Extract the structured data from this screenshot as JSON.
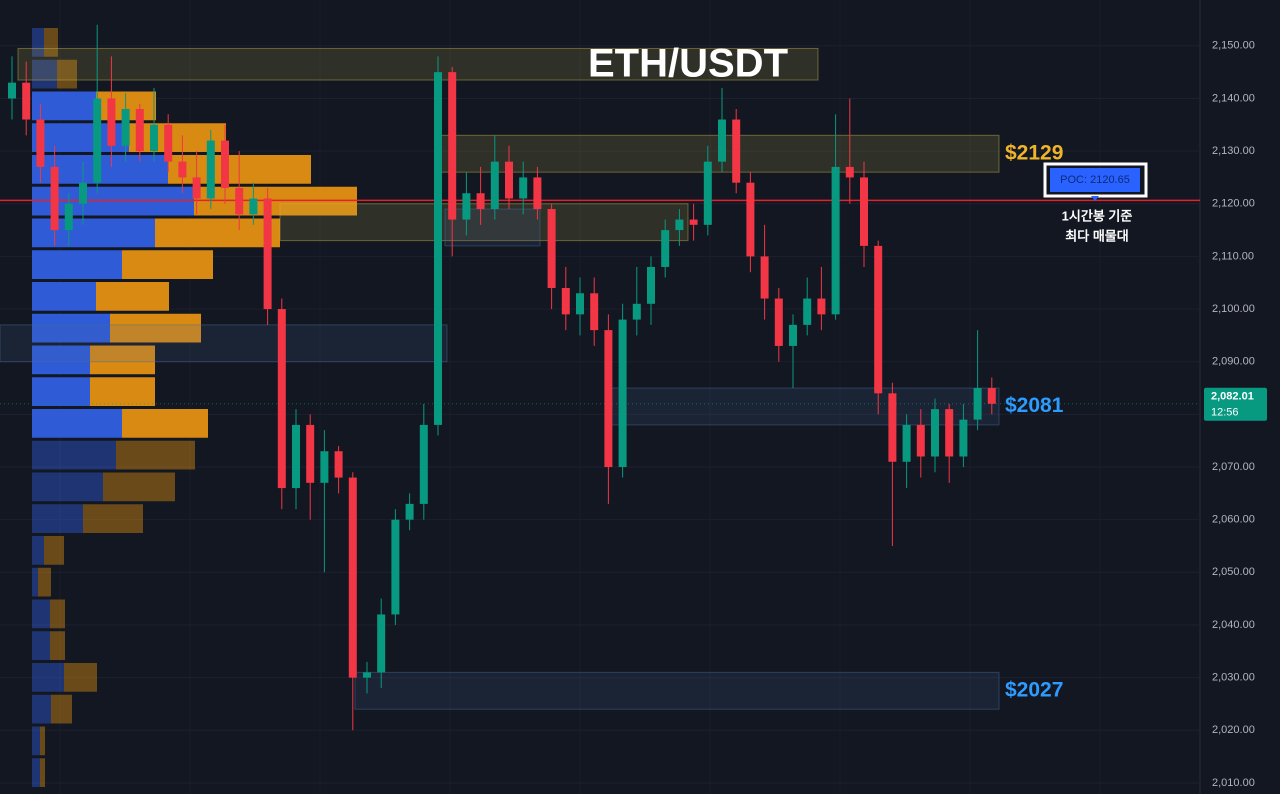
{
  "chart_data": {
    "type": "candlestick",
    "title": "ETH/USDT",
    "ylim": [
      2007.9,
      2158.7
    ],
    "yticks": [
      {
        "value": 2010,
        "label": "2,010.00"
      },
      {
        "value": 2020,
        "label": "2,020.00"
      },
      {
        "value": 2030,
        "label": "2,030.00"
      },
      {
        "value": 2040,
        "label": "2,040.00"
      },
      {
        "value": 2050,
        "label": "2,050.00"
      },
      {
        "value": 2060,
        "label": "2,060.00"
      },
      {
        "value": 2070,
        "label": "2,070.00"
      },
      {
        "value": 2080,
        "label": "2,080.00"
      },
      {
        "value": 2090,
        "label": "2,090.00"
      },
      {
        "value": 2100,
        "label": "2,100.00"
      },
      {
        "value": 2110,
        "label": "2,110.00"
      },
      {
        "value": 2120,
        "label": "2,120.00"
      },
      {
        "value": 2130,
        "label": "2,130.00"
      },
      {
        "value": 2140,
        "label": "2,140.00"
      },
      {
        "value": 2150,
        "label": "2,150.00"
      }
    ],
    "grid": true,
    "up_color": "#089981",
    "down_color": "#f23645",
    "ohlc": [
      [
        2140,
        2148,
        2136,
        2143
      ],
      [
        2143,
        2147,
        2133,
        2136
      ],
      [
        2136,
        2139,
        2124,
        2127
      ],
      [
        2127,
        2131,
        2112,
        2115
      ],
      [
        2115,
        2122,
        2112,
        2120
      ],
      [
        2120,
        2128,
        2116,
        2124
      ],
      [
        2124,
        2154,
        2122,
        2140
      ],
      [
        2140,
        2148,
        2127,
        2131
      ],
      [
        2131,
        2141,
        2128,
        2138
      ],
      [
        2138,
        2139,
        2128,
        2130
      ],
      [
        2130,
        2142,
        2128,
        2135
      ],
      [
        2135,
        2137,
        2126,
        2128
      ],
      [
        2128,
        2133,
        2122,
        2125
      ],
      [
        2125,
        2130,
        2118,
        2121
      ],
      [
        2121,
        2134,
        2119,
        2132
      ],
      [
        2132,
        2135,
        2120,
        2123
      ],
      [
        2123,
        2130,
        2115,
        2118
      ],
      [
        2118,
        2124,
        2116,
        2121
      ],
      [
        2121,
        2123,
        2097,
        2100
      ],
      [
        2100,
        2102,
        2062,
        2066
      ],
      [
        2066,
        2081,
        2062,
        2078
      ],
      [
        2078,
        2080,
        2060,
        2067
      ],
      [
        2067,
        2077,
        2050,
        2073
      ],
      [
        2073,
        2074,
        2065,
        2068
      ],
      [
        2068,
        2069,
        2020,
        2030
      ],
      [
        2030,
        2033,
        2027,
        2031
      ],
      [
        2031,
        2045,
        2028,
        2042
      ],
      [
        2042,
        2062,
        2040,
        2060
      ],
      [
        2060,
        2065,
        2058,
        2063
      ],
      [
        2063,
        2082,
        2060,
        2078
      ],
      [
        2078,
        2148,
        2076,
        2145
      ],
      [
        2145,
        2146,
        2110,
        2117
      ],
      [
        2117,
        2126,
        2114,
        2122
      ],
      [
        2122,
        2127,
        2116,
        2119
      ],
      [
        2119,
        2133,
        2117,
        2128
      ],
      [
        2128,
        2131,
        2119,
        2121
      ],
      [
        2121,
        2128,
        2118,
        2125
      ],
      [
        2125,
        2127,
        2117,
        2119
      ],
      [
        2119,
        2120,
        2100,
        2104
      ],
      [
        2104,
        2108,
        2096,
        2099
      ],
      [
        2099,
        2106,
        2095,
        2103
      ],
      [
        2103,
        2106,
        2093,
        2096
      ],
      [
        2096,
        2099,
        2063,
        2070
      ],
      [
        2070,
        2101,
        2068,
        2098
      ],
      [
        2098,
        2108,
        2095,
        2101
      ],
      [
        2101,
        2110,
        2097,
        2108
      ],
      [
        2108,
        2117,
        2106,
        2115
      ],
      [
        2115,
        2119,
        2112,
        2117
      ],
      [
        2117,
        2120,
        2113,
        2116
      ],
      [
        2116,
        2131,
        2114,
        2128
      ],
      [
        2128,
        2142,
        2126,
        2136
      ],
      [
        2136,
        2138,
        2122,
        2124
      ],
      [
        2124,
        2126,
        2107,
        2110
      ],
      [
        2110,
        2116,
        2098,
        2102
      ],
      [
        2102,
        2104,
        2090,
        2093
      ],
      [
        2093,
        2099,
        2085,
        2097
      ],
      [
        2097,
        2106,
        2095,
        2102
      ],
      [
        2102,
        2108,
        2096,
        2099
      ],
      [
        2099,
        2137,
        2098,
        2127
      ],
      [
        2127,
        2140,
        2120,
        2125
      ],
      [
        2125,
        2128,
        2108,
        2112
      ],
      [
        2112,
        2113,
        2080,
        2084
      ],
      [
        2084,
        2086,
        2055,
        2071
      ],
      [
        2071,
        2080,
        2066,
        2078
      ],
      [
        2078,
        2081,
        2068,
        2072
      ],
      [
        2072,
        2083,
        2069,
        2081
      ],
      [
        2081,
        2082,
        2067,
        2072
      ],
      [
        2072,
        2082,
        2070,
        2079
      ],
      [
        2079,
        2096,
        2077,
        2085
      ],
      [
        2085,
        2087,
        2080,
        2082.01
      ]
    ],
    "volume_profile": {
      "buy_color": "#2f5bd6",
      "sell_color": "#d88a12",
      "buy": [
        12,
        25,
        64,
        97,
        136,
        162,
        123,
        90,
        64,
        78,
        58,
        58,
        90,
        84,
        71,
        51,
        12,
        6,
        18,
        18,
        32,
        19,
        8,
        8
      ],
      "sell": [
        14,
        20,
        60,
        97,
        143,
        163,
        125,
        91,
        73,
        91,
        65,
        65,
        86,
        79,
        72,
        60,
        20,
        13,
        15,
        15,
        33,
        21,
        5,
        5
      ]
    },
    "zones": [
      {
        "low": 2143.5,
        "high": 2149.5,
        "color": "#c8b44a"
      },
      {
        "low": 2126,
        "high": 2133,
        "color": "#c8b44a",
        "label": "$2129",
        "label_color": "#f0b429"
      },
      {
        "low": 2113,
        "high": 2120,
        "color": "#c8b44a"
      },
      {
        "low": 2090,
        "high": 2097,
        "color": "#4a6a9a"
      },
      {
        "low": 2078,
        "high": 2085,
        "color": "#4a6a9a",
        "label": "$2081",
        "label_color": "#2e9bff"
      },
      {
        "low": 2024,
        "high": 2031,
        "color": "#4a6a9a",
        "label": "$2027",
        "label_color": "#2e9bff"
      },
      {
        "low": 2112,
        "high": 2119,
        "color": "#4a6a9a"
      }
    ],
    "poc": {
      "value": 2120.65,
      "label": "POC: 2120.65",
      "color": "#e3212b"
    },
    "annotation": [
      "1시간봉 기준",
      "최다 매물대"
    ],
    "last_price": {
      "value": 2082.01,
      "label": "2,082.01",
      "countdown": "12:56",
      "color": "#089981"
    }
  }
}
